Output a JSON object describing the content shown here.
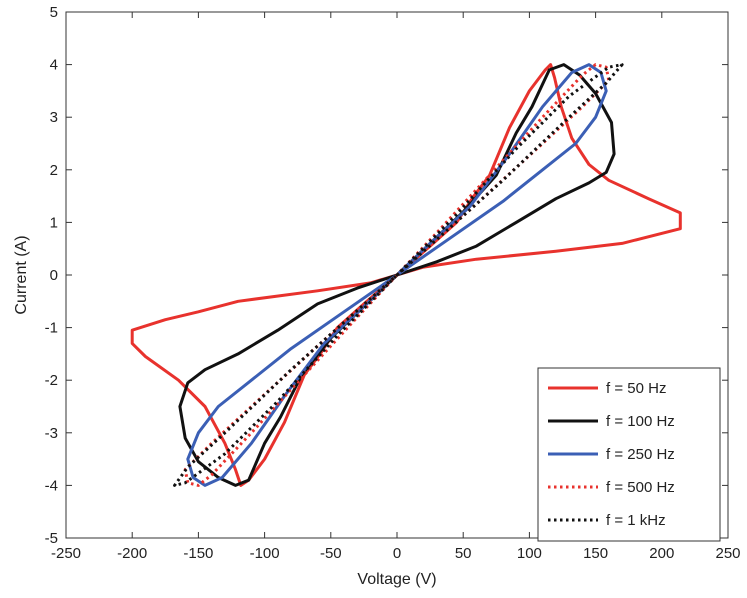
{
  "chart_data": {
    "type": "line",
    "title": "",
    "xlabel": "Voltage (V)",
    "ylabel": "Current (A)",
    "xlim": [
      -250,
      250
    ],
    "ylim": [
      -5,
      5
    ],
    "xticks": [
      -250,
      -200,
      -150,
      -100,
      -50,
      0,
      50,
      100,
      150,
      200,
      250
    ],
    "yticks": [
      -5,
      -4,
      -3,
      -2,
      -1,
      0,
      1,
      2,
      3,
      4,
      5
    ],
    "grid": false,
    "legend_position": "bottom-right",
    "series": [
      {
        "name": "f = 50 Hz",
        "color": "#e8322d",
        "style": "solid",
        "points": [
          [
            0,
            0
          ],
          [
            20,
            0.15
          ],
          [
            60,
            0.3
          ],
          [
            120,
            0.45
          ],
          [
            170,
            0.6
          ],
          [
            214,
            0.88
          ],
          [
            214,
            1.18
          ],
          [
            190,
            1.45
          ],
          [
            160,
            1.8
          ],
          [
            145,
            2.1
          ],
          [
            132,
            2.6
          ],
          [
            124,
            3.2
          ],
          [
            119,
            3.75
          ],
          [
            116,
            4.0
          ],
          [
            112,
            3.9
          ],
          [
            100,
            3.5
          ],
          [
            85,
            2.8
          ],
          [
            70,
            1.9
          ],
          [
            58,
            1.5
          ],
          [
            45,
            1.0
          ],
          [
            25,
            0.55
          ],
          [
            0,
            0
          ],
          [
            -20,
            -0.15
          ],
          [
            -60,
            -0.3
          ],
          [
            -120,
            -0.5
          ],
          [
            -150,
            -0.7
          ],
          [
            -175,
            -0.85
          ],
          [
            -200,
            -1.05
          ],
          [
            -200,
            -1.3
          ],
          [
            -190,
            -1.55
          ],
          [
            -165,
            -2.0
          ],
          [
            -145,
            -2.5
          ],
          [
            -130,
            -3.2
          ],
          [
            -122,
            -3.7
          ],
          [
            -118,
            -4.0
          ],
          [
            -112,
            -3.9
          ],
          [
            -100,
            -3.5
          ],
          [
            -85,
            -2.8
          ],
          [
            -70,
            -1.9
          ],
          [
            -58,
            -1.5
          ],
          [
            -45,
            -1.0
          ],
          [
            -25,
            -0.55
          ],
          [
            0,
            0
          ]
        ]
      },
      {
        "name": "f = 100 Hz",
        "color": "#111111",
        "style": "solid",
        "points": [
          [
            0,
            0
          ],
          [
            30,
            0.25
          ],
          [
            60,
            0.55
          ],
          [
            90,
            1.0
          ],
          [
            120,
            1.45
          ],
          [
            145,
            1.75
          ],
          [
            158,
            1.95
          ],
          [
            164,
            2.3
          ],
          [
            162,
            2.9
          ],
          [
            150,
            3.45
          ],
          [
            138,
            3.8
          ],
          [
            126,
            4.0
          ],
          [
            115,
            3.9
          ],
          [
            102,
            3.2
          ],
          [
            90,
            2.7
          ],
          [
            75,
            1.9
          ],
          [
            50,
            1.2
          ],
          [
            25,
            0.6
          ],
          [
            0,
            0
          ],
          [
            -30,
            -0.25
          ],
          [
            -60,
            -0.55
          ],
          [
            -90,
            -1.05
          ],
          [
            -120,
            -1.5
          ],
          [
            -145,
            -1.8
          ],
          [
            -158,
            -2.05
          ],
          [
            -164,
            -2.5
          ],
          [
            -160,
            -3.1
          ],
          [
            -150,
            -3.55
          ],
          [
            -135,
            -3.85
          ],
          [
            -122,
            -4.0
          ],
          [
            -112,
            -3.9
          ],
          [
            -100,
            -3.2
          ],
          [
            -88,
            -2.7
          ],
          [
            -72,
            -1.9
          ],
          [
            -50,
            -1.2
          ],
          [
            -25,
            -0.6
          ],
          [
            0,
            0
          ]
        ]
      },
      {
        "name": "f = 250 Hz",
        "color": "#3b5fb5",
        "style": "solid",
        "points": [
          [
            0,
            0
          ],
          [
            40,
            0.7
          ],
          [
            80,
            1.4
          ],
          [
            110,
            2.0
          ],
          [
            135,
            2.5
          ],
          [
            150,
            3.0
          ],
          [
            158,
            3.5
          ],
          [
            154,
            3.85
          ],
          [
            145,
            4.0
          ],
          [
            132,
            3.85
          ],
          [
            110,
            3.2
          ],
          [
            85,
            2.3
          ],
          [
            55,
            1.3
          ],
          [
            25,
            0.6
          ],
          [
            0,
            0
          ],
          [
            -40,
            -0.7
          ],
          [
            -80,
            -1.4
          ],
          [
            -110,
            -2.0
          ],
          [
            -135,
            -2.5
          ],
          [
            -150,
            -3.0
          ],
          [
            -158,
            -3.5
          ],
          [
            -154,
            -3.85
          ],
          [
            -145,
            -4.0
          ],
          [
            -132,
            -3.85
          ],
          [
            -110,
            -3.2
          ],
          [
            -85,
            -2.3
          ],
          [
            -55,
            -1.3
          ],
          [
            -25,
            -0.6
          ],
          [
            0,
            0
          ]
        ]
      },
      {
        "name": "f = 500 Hz",
        "color": "#e8322d",
        "style": "dotted",
        "points": [
          [
            0,
            0
          ],
          [
            60,
            1.35
          ],
          [
            110,
            2.5
          ],
          [
            140,
            3.2
          ],
          [
            160,
            3.7
          ],
          [
            158,
            3.95
          ],
          [
            150,
            4.0
          ],
          [
            140,
            3.8
          ],
          [
            110,
            3.0
          ],
          [
            70,
            1.9
          ],
          [
            30,
            0.8
          ],
          [
            0,
            0
          ],
          [
            -60,
            -1.35
          ],
          [
            -110,
            -2.5
          ],
          [
            -140,
            -3.2
          ],
          [
            -160,
            -3.7
          ],
          [
            -158,
            -3.95
          ],
          [
            -150,
            -4.0
          ],
          [
            -140,
            -3.8
          ],
          [
            -110,
            -3.0
          ],
          [
            -70,
            -1.9
          ],
          [
            -30,
            -0.8
          ],
          [
            0,
            0
          ]
        ]
      },
      {
        "name": "f = 1 kHz",
        "color": "#111111",
        "style": "dotted",
        "points": [
          [
            0,
            0
          ],
          [
            80,
            1.8
          ],
          [
            130,
            3.0
          ],
          [
            158,
            3.65
          ],
          [
            170,
            4.0
          ],
          [
            160,
            3.95
          ],
          [
            130,
            3.4
          ],
          [
            90,
            2.4
          ],
          [
            45,
            1.15
          ],
          [
            0,
            0
          ],
          [
            -80,
            -1.8
          ],
          [
            -130,
            -3.0
          ],
          [
            -158,
            -3.65
          ],
          [
            -168,
            -4.0
          ],
          [
            -160,
            -3.95
          ],
          [
            -130,
            -3.4
          ],
          [
            -90,
            -2.4
          ],
          [
            -45,
            -1.15
          ],
          [
            0,
            0
          ]
        ]
      }
    ]
  }
}
